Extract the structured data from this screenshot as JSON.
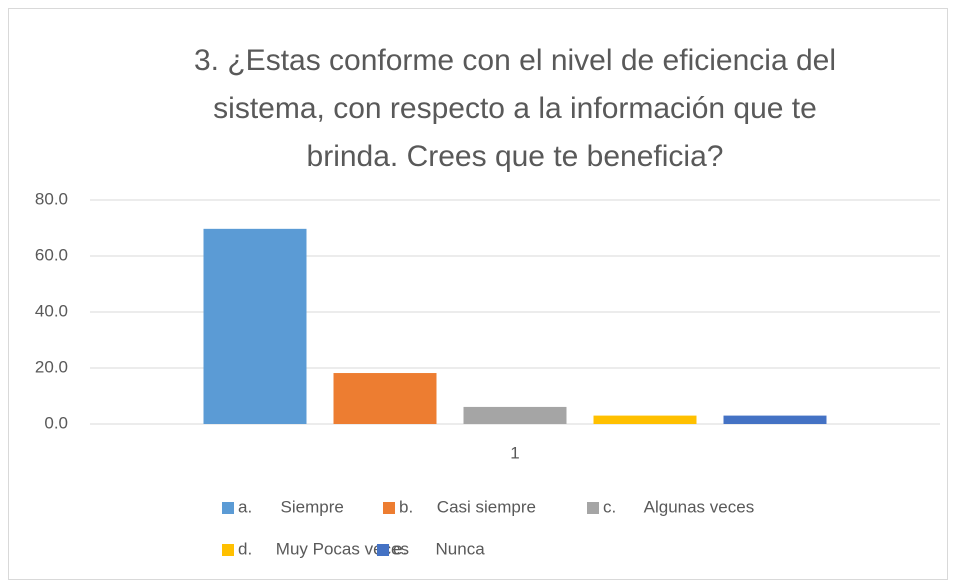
{
  "chart_data": {
    "type": "bar",
    "title": [
      "3. ¿Estas conforme con el nivel de eficiencia del",
      "sistema, con respecto a la información que te",
      "brinda. Crees que te beneficia?"
    ],
    "categories": [
      "1"
    ],
    "series": [
      {
        "name": "a.      Siempre",
        "color": "#5b9bd5",
        "values": [
          69.7
        ]
      },
      {
        "name": "b.     Casi siempre",
        "color": "#ed7d31",
        "values": [
          18.2
        ]
      },
      {
        "name": "c.      Algunas veces",
        "color": "#a5a5a5",
        "values": [
          6.1
        ]
      },
      {
        "name": "d.     Muy Pocas veces",
        "color": "#ffc000",
        "values": [
          3.0
        ]
      },
      {
        "name": "e.      Nunca",
        "color": "#4472c4",
        "values": [
          3.0
        ]
      }
    ],
    "ylim": [
      0,
      80
    ],
    "yticks": [
      {
        "value": 0,
        "label": "0.0"
      },
      {
        "value": 20,
        "label": "20.0"
      },
      {
        "value": 40,
        "label": "40.0"
      },
      {
        "value": 60,
        "label": "60.0"
      },
      {
        "value": 80,
        "label": "80.0"
      }
    ],
    "grid": true,
    "legend": "bottom"
  }
}
